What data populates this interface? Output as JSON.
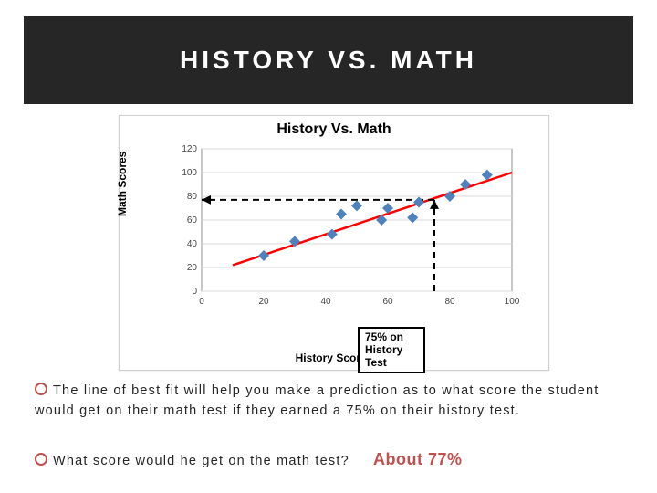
{
  "title": "HISTORY  VS.  MATH",
  "chart": {
    "type": "scatter",
    "title": "History Vs. Math",
    "xlabel": "History Scores",
    "ylabel": "Math Scores",
    "xlim": [
      0,
      100
    ],
    "ylim": [
      0,
      120
    ],
    "xtick_step": 20,
    "ytick_step": 20,
    "title_fontsize": 16,
    "label_fontsize": 12,
    "tick_fontsize": 10,
    "background_color": "#ffffff",
    "grid_color": "#d9d9d9",
    "border_color": "#8f8f8f",
    "points": [
      {
        "x": 20,
        "y": 30
      },
      {
        "x": 30,
        "y": 42
      },
      {
        "x": 42,
        "y": 48
      },
      {
        "x": 45,
        "y": 65
      },
      {
        "x": 50,
        "y": 72
      },
      {
        "x": 58,
        "y": 60
      },
      {
        "x": 60,
        "y": 70
      },
      {
        "x": 68,
        "y": 62
      },
      {
        "x": 70,
        "y": 75
      },
      {
        "x": 80,
        "y": 80
      },
      {
        "x": 85,
        "y": 90
      },
      {
        "x": 92,
        "y": 98
      }
    ],
    "marker_color": "#4f81bd",
    "marker_size": 6,
    "marker_shape": "diamond",
    "fit_line": {
      "x1": 10,
      "y1": 22,
      "x2": 100,
      "y2": 100,
      "color": "#ff0000",
      "width": 2.5
    },
    "indicator": {
      "x_value": 75,
      "y_value": 77,
      "dash_color": "#000000",
      "dash_pattern": "7 5",
      "dash_width": 2,
      "arrowhead_color": "#000000"
    }
  },
  "callout": {
    "line1": "75% on",
    "line2": "History",
    "line3": "Test"
  },
  "bullet1": "The line of best fit will help you make a prediction as to what score the student would get on their math test if they earned a 75% on their history test.",
  "bullet2": "What score would he get on the math test?",
  "answer": "About 77%",
  "colors": {
    "title_bg": "#262626",
    "title_text": "#ffffff",
    "bullet_ring": "#c0504d",
    "answer_text": "#c0504d",
    "body_text": "#262626"
  }
}
